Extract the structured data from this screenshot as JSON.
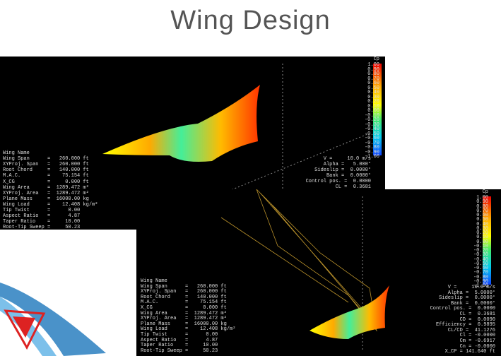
{
  "title": "Wing Design",
  "screenshots": [
    {
      "wing_properties": [
        "Wing Name",
        "Wing Span      =   260.000 ft",
        "XYProj. Span   =   260.000 ft",
        "Root Chord     =   140.000 ft",
        "M.A.C.         =    75.154 ft",
        "X_CG           =     0.000 ft",
        "Wing Area      =  1289.472 m²",
        "XYProj. Area   =  1289.472 m²",
        "Plane Mass     =  16000.00 kg",
        "Wing Load      =    12.408 kg/m²",
        "Tip Twist      =      0.00",
        "Aspect Ratio   =      4.87",
        "Taper Ratio    =     10.00",
        "Root-Tip Sweep =     50.23"
      ],
      "flight_params": [
        "V =     10.0 m/s",
        "Alpha =   5.000°",
        "Sideslip =  0.0000°",
        "Bank =  0.0000°",
        "Control pos. =  0.0000",
        "CL =  0.3681"
      ],
      "legend": {
        "title": "Cp",
        "labels": [
          "1.00",
          "0.90",
          "0.80",
          "0.70",
          "0.60",
          "0.50",
          "0.40",
          "0.30",
          "0.20",
          "0.10",
          "0.00",
          "-0.10",
          "-0.20",
          "-0.30",
          "-0.40",
          "-0.50",
          "-0.60",
          "-0.70",
          "-0.80",
          "-0.90",
          "-1.00"
        ]
      }
    },
    {
      "wing_properties": [
        "Wing Name",
        "Wing Span      =   260.000 ft",
        "XYProj. Span   =   260.000 ft",
        "Root Chord     =   140.000 ft",
        "M.A.C.         =    75.154 ft",
        "X_CG           =     0.000 ft",
        "Wing Area      =  1289.472 m²",
        "XYProj. Area   =  1289.472 m²",
        "Plane Mass     =  16000.00 kg",
        "Wing Load      =    12.408 kg/m²",
        "Tip Twist      =      0.00",
        "Aspect Ratio   =      4.87",
        "Taper Ratio    =     10.00",
        "Root-Tip Sweep =     50.23"
      ],
      "flight_params": [
        "V =     10.0 m/s",
        "Alpha =  5.0000°",
        "Sideslip =  0.0000°",
        "Bank =  0.0000°",
        "Control pos. =  0.0000",
        "CL =  0.3681",
        "CD =  0.0090",
        "Efficiency =  0.9895",
        "CL/CD =  41.1276",
        "Cl = -0.0000",
        "Cm = -0.6917",
        "Cn = -0.0000",
        "X_CP = 141.640 ft"
      ],
      "legend": {
        "title": "Cp",
        "labels": [
          "1.00",
          "0.90",
          "0.80",
          "0.70",
          "0.60",
          "0.50",
          "0.40",
          "0.30",
          "0.20",
          "0.10",
          "0.00",
          "-0.10",
          "-0.20",
          "-0.30",
          "-0.40",
          "-0.50",
          "-0.60",
          "-0.70",
          "-0.80",
          "-0.90",
          "-1.00"
        ]
      }
    }
  ]
}
